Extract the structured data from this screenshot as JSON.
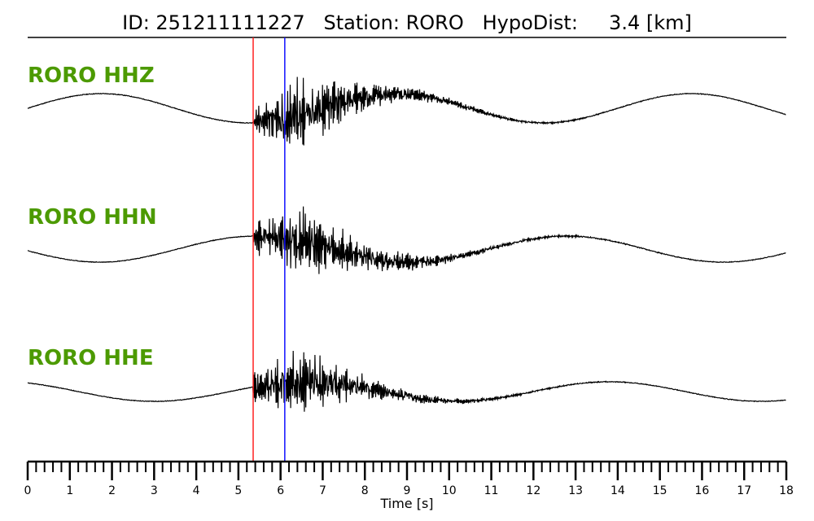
{
  "chart_data": {
    "type": "line",
    "title": "ID: 251211111227   Station: RORO   HypoDist:     3.4 [km]",
    "xlabel": "Time [s]",
    "ylabel": "",
    "xlim": [
      0,
      18
    ],
    "x_major_ticks": [
      0,
      1,
      2,
      3,
      4,
      5,
      6,
      7,
      8,
      9,
      10,
      11,
      12,
      13,
      14,
      15,
      16,
      17,
      18
    ],
    "x_minor_step": 0.2,
    "grid": false,
    "label_color": "#4c9a00",
    "picks": [
      {
        "name": "P pick",
        "time": 5.35,
        "color": "#ff2020"
      },
      {
        "name": "S pick",
        "time": 6.1,
        "color": "#1010ff"
      }
    ],
    "traces": [
      {
        "name": "RORO HHZ",
        "lp_amp": 0.45,
        "lp_period": 7.0,
        "lp_peak": 1.75,
        "burst_amp": 1.15,
        "onset": 5.35,
        "peak_time": 6.4,
        "decay": 1.6,
        "noise": 0.02,
        "seed": 11
      },
      {
        "name": "RORO HHN",
        "lp_amp": 0.4,
        "lp_period": 7.4,
        "lp_peak": 5.4,
        "burst_amp": 1.1,
        "onset": 5.35,
        "peak_time": 6.6,
        "decay": 1.7,
        "noise": 0.02,
        "seed": 23
      },
      {
        "name": "RORO HHE",
        "lp_amp": 0.3,
        "lp_period": 7.2,
        "lp_peak": 6.6,
        "burst_amp": 1.05,
        "onset": 5.35,
        "peak_time": 6.5,
        "decay": 1.5,
        "noise": 0.02,
        "seed": 37
      }
    ]
  }
}
